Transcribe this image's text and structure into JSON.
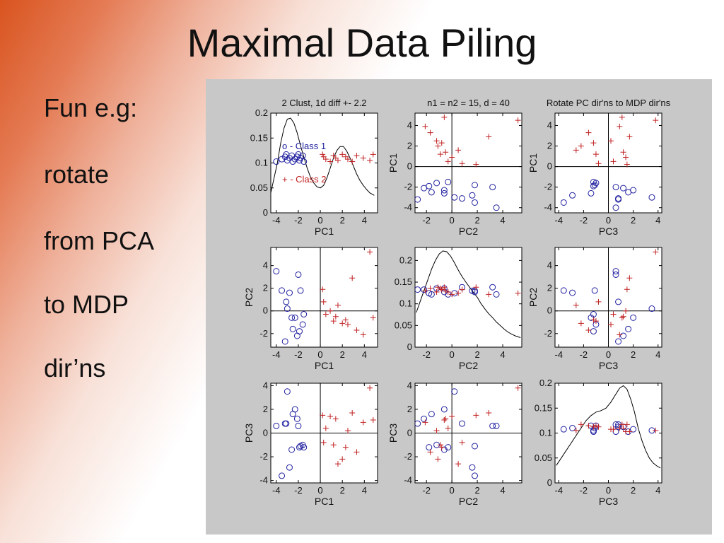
{
  "slide": {
    "title": "Maximal Data Piling",
    "bullets": [
      "Fun e.g:",
      "rotate",
      "from PCA",
      "to MDP",
      "dir’ns"
    ]
  },
  "chart_data": {
    "type": "scatter",
    "layout": "3x3 scatterplot matrix",
    "variables": [
      "PC1",
      "PC2",
      "PC3"
    ],
    "titles": [
      "2 Clust, 1d diff +- 2.2",
      "n1 = n2 = 15, d = 40",
      "Rotate PC dir'ns to MDP dir'ns"
    ],
    "legend": {
      "position": "inside top-left panel",
      "entries": [
        "o - Class 1",
        "+ - Class 2"
      ]
    },
    "colors": {
      "class1": "#2020a0",
      "class2": "#c02020",
      "curve": "#000000"
    },
    "series": [
      {
        "name": "Class 1",
        "marker": "circle",
        "PC1": [
          -4.0,
          -3.5,
          -3.2,
          -3.1,
          -3.0,
          -2.8,
          -2.6,
          -2.5,
          -2.3,
          -2.1,
          -2.0,
          -1.9,
          -1.8,
          -1.6,
          -1.5
        ],
        "PC2": [
          3.5,
          1.8,
          -2.7,
          0.8,
          0.2,
          1.6,
          -0.6,
          -1.6,
          -0.6,
          -2.2,
          3.2,
          -1.8,
          1.8,
          -1.2,
          -0.3
        ],
        "PC3": [
          0.6,
          -3.6,
          0.8,
          0.8,
          3.5,
          -2.9,
          -1.4,
          1.6,
          2.0,
          1.2,
          0.6,
          -1.2,
          -1.1,
          -1.0,
          -1.2
        ]
      },
      {
        "name": "Class 2",
        "marker": "plus",
        "PC1": [
          0.2,
          0.3,
          0.5,
          0.9,
          1.2,
          1.4,
          1.6,
          2.0,
          2.3,
          2.5,
          2.9,
          3.3,
          3.9,
          4.5,
          4.8
        ],
        "PC2": [
          1.9,
          0.8,
          -0.3,
          0.0,
          -0.9,
          -0.5,
          0.5,
          -1.1,
          -0.8,
          -1.2,
          2.9,
          -1.7,
          -2.1,
          5.2,
          -0.6
        ],
        "PC3": [
          1.5,
          -0.8,
          0.4,
          1.4,
          -1.0,
          1.2,
          -2.6,
          -2.2,
          -1.2,
          0.2,
          1.7,
          -1.6,
          0.9,
          3.8,
          1.1
        ]
      }
    ],
    "diagonal_density": {
      "PC1": {
        "x": [
          -4.5,
          -3.9,
          -3.6,
          -3.3,
          -3.0,
          -2.7,
          -2.4,
          -2.1,
          -1.8,
          -1.5,
          -1.2,
          -0.9,
          -0.6,
          -0.3,
          0.0,
          0.3,
          0.6,
          0.9,
          1.2,
          1.5,
          1.8,
          2.1,
          2.4,
          2.7,
          3.0,
          3.3,
          3.6,
          3.9,
          4.2,
          4.5,
          4.9
        ],
        "y": [
          0.04,
          0.1,
          0.14,
          0.17,
          0.188,
          0.19,
          0.18,
          0.16,
          0.135,
          0.112,
          0.09,
          0.072,
          0.06,
          0.052,
          0.05,
          0.055,
          0.07,
          0.09,
          0.11,
          0.125,
          0.133,
          0.133,
          0.124,
          0.11,
          0.094,
          0.078,
          0.065,
          0.055,
          0.047,
          0.04,
          0.035
        ]
      },
      "PC2": {
        "x": [
          -2.8,
          -2.5,
          -2.2,
          -1.9,
          -1.6,
          -1.3,
          -1.0,
          -0.7,
          -0.4,
          -0.1,
          0.2,
          0.5,
          0.8,
          1.1,
          1.4,
          1.7,
          2.0,
          2.3,
          2.6,
          2.9,
          3.2,
          3.5,
          3.8,
          4.1,
          4.4,
          4.7,
          5.0,
          5.4
        ],
        "y": [
          0.08,
          0.105,
          0.13,
          0.155,
          0.18,
          0.2,
          0.215,
          0.222,
          0.22,
          0.21,
          0.195,
          0.178,
          0.163,
          0.15,
          0.138,
          0.126,
          0.115,
          0.1,
          0.088,
          0.077,
          0.068,
          0.058,
          0.05,
          0.042,
          0.035,
          0.03,
          0.026,
          0.022
        ]
      },
      "PC3": {
        "x": [
          -4.2,
          -3.8,
          -3.4,
          -3.0,
          -2.6,
          -2.2,
          -1.8,
          -1.4,
          -1.0,
          -0.6,
          -0.2,
          0.2,
          0.6,
          0.9,
          1.2,
          1.5,
          1.8,
          2.1,
          2.4,
          2.7,
          3.0,
          3.3,
          3.6,
          3.9,
          4.2
        ],
        "y": [
          0.035,
          0.05,
          0.065,
          0.08,
          0.095,
          0.11,
          0.125,
          0.135,
          0.142,
          0.145,
          0.15,
          0.162,
          0.178,
          0.19,
          0.195,
          0.188,
          0.168,
          0.142,
          0.11,
          0.085,
          0.065,
          0.05,
          0.04,
          0.034,
          0.03
        ]
      }
    },
    "panels": [
      {
        "row": 0,
        "col": 0,
        "kind": "density",
        "var": "PC1",
        "xlabel": "PC1",
        "ylabel": "",
        "xlim": [
          -4.5,
          5.2
        ],
        "ylim": [
          0,
          0.2
        ],
        "xticks": [
          -4,
          -2,
          0,
          2,
          4
        ],
        "yticks": [
          0,
          0.05,
          0.1,
          0.15,
          0.2
        ],
        "yticklabels": [
          "0",
          "0.05",
          "0.1",
          "0.15",
          "0.2"
        ],
        "jitter_level": 0.11,
        "title_index": 0,
        "legend": true
      },
      {
        "row": 0,
        "col": 1,
        "kind": "scatter",
        "x": "PC2",
        "y": "PC1",
        "xlabel": "PC2",
        "ylabel": "PC1",
        "xlim": [
          -2.9,
          5.5
        ],
        "ylim": [
          -4.5,
          5.2
        ],
        "xticks": [
          -2,
          0,
          2,
          4
        ],
        "yticks": [
          -4,
          -2,
          0,
          2,
          4
        ],
        "title_index": 1
      },
      {
        "row": 0,
        "col": 2,
        "kind": "scatter",
        "x": "PC3",
        "y": "PC1",
        "xlabel": "PC3",
        "ylabel": "PC1",
        "xlim": [
          -4.3,
          4.3
        ],
        "ylim": [
          -4.5,
          5.2
        ],
        "xticks": [
          -4,
          -2,
          0,
          2,
          4
        ],
        "yticks": [
          -4,
          -2,
          0,
          2,
          4
        ],
        "title_index": 2
      },
      {
        "row": 1,
        "col": 0,
        "kind": "scatter",
        "x": "PC1",
        "y": "PC2",
        "xlabel": "PC1",
        "ylabel": "PC2",
        "xlim": [
          -4.5,
          5.2
        ],
        "ylim": [
          -3.2,
          5.6
        ],
        "xticks": [
          -4,
          -2,
          0,
          2,
          4
        ],
        "yticks": [
          -2,
          0,
          2,
          4
        ]
      },
      {
        "row": 1,
        "col": 1,
        "kind": "density",
        "var": "PC2",
        "xlabel": "PC2",
        "ylabel": "",
        "xlim": [
          -2.9,
          5.5
        ],
        "ylim": [
          0,
          0.23
        ],
        "xticks": [
          -2,
          0,
          2,
          4
        ],
        "yticks": [
          0,
          0.05,
          0.1,
          0.15,
          0.2
        ],
        "yticklabels": [
          "0",
          "0.05",
          "0.1",
          "0.15",
          "0.2"
        ],
        "jitter_level": 0.13
      },
      {
        "row": 1,
        "col": 2,
        "kind": "scatter",
        "x": "PC3",
        "y": "PC2",
        "xlabel": "PC3",
        "ylabel": "PC2",
        "xlim": [
          -4.3,
          4.3
        ],
        "ylim": [
          -3.2,
          5.6
        ],
        "xticks": [
          -4,
          -2,
          0,
          2,
          4
        ],
        "yticks": [
          -2,
          0,
          2,
          4
        ]
      },
      {
        "row": 2,
        "col": 0,
        "kind": "scatter",
        "x": "PC1",
        "y": "PC3",
        "xlabel": "PC1",
        "ylabel": "PC3",
        "xlim": [
          -4.5,
          5.2
        ],
        "ylim": [
          -4.2,
          4.2
        ],
        "xticks": [
          -4,
          -2,
          0,
          2,
          4
        ],
        "yticks": [
          -4,
          -2,
          0,
          2,
          4
        ]
      },
      {
        "row": 2,
        "col": 1,
        "kind": "scatter",
        "x": "PC2",
        "y": "PC3",
        "xlabel": "PC2",
        "ylabel": "PC3",
        "xlim": [
          -2.9,
          5.5
        ],
        "ylim": [
          -4.2,
          4.2
        ],
        "xticks": [
          -2,
          0,
          2,
          4
        ],
        "yticks": [
          -4,
          -2,
          0,
          2,
          4
        ]
      },
      {
        "row": 2,
        "col": 2,
        "kind": "density",
        "var": "PC3",
        "xlabel": "PC3",
        "ylabel": "",
        "xlim": [
          -4.3,
          4.3
        ],
        "ylim": [
          0,
          0.2
        ],
        "xticks": [
          -4,
          -2,
          0,
          2,
          4
        ],
        "yticks": [
          0,
          0.05,
          0.1,
          0.15,
          0.2
        ],
        "yticklabels": [
          "0",
          "0.05",
          "0.1",
          "0.15",
          "0.2"
        ],
        "jitter_level": 0.11
      }
    ]
  }
}
